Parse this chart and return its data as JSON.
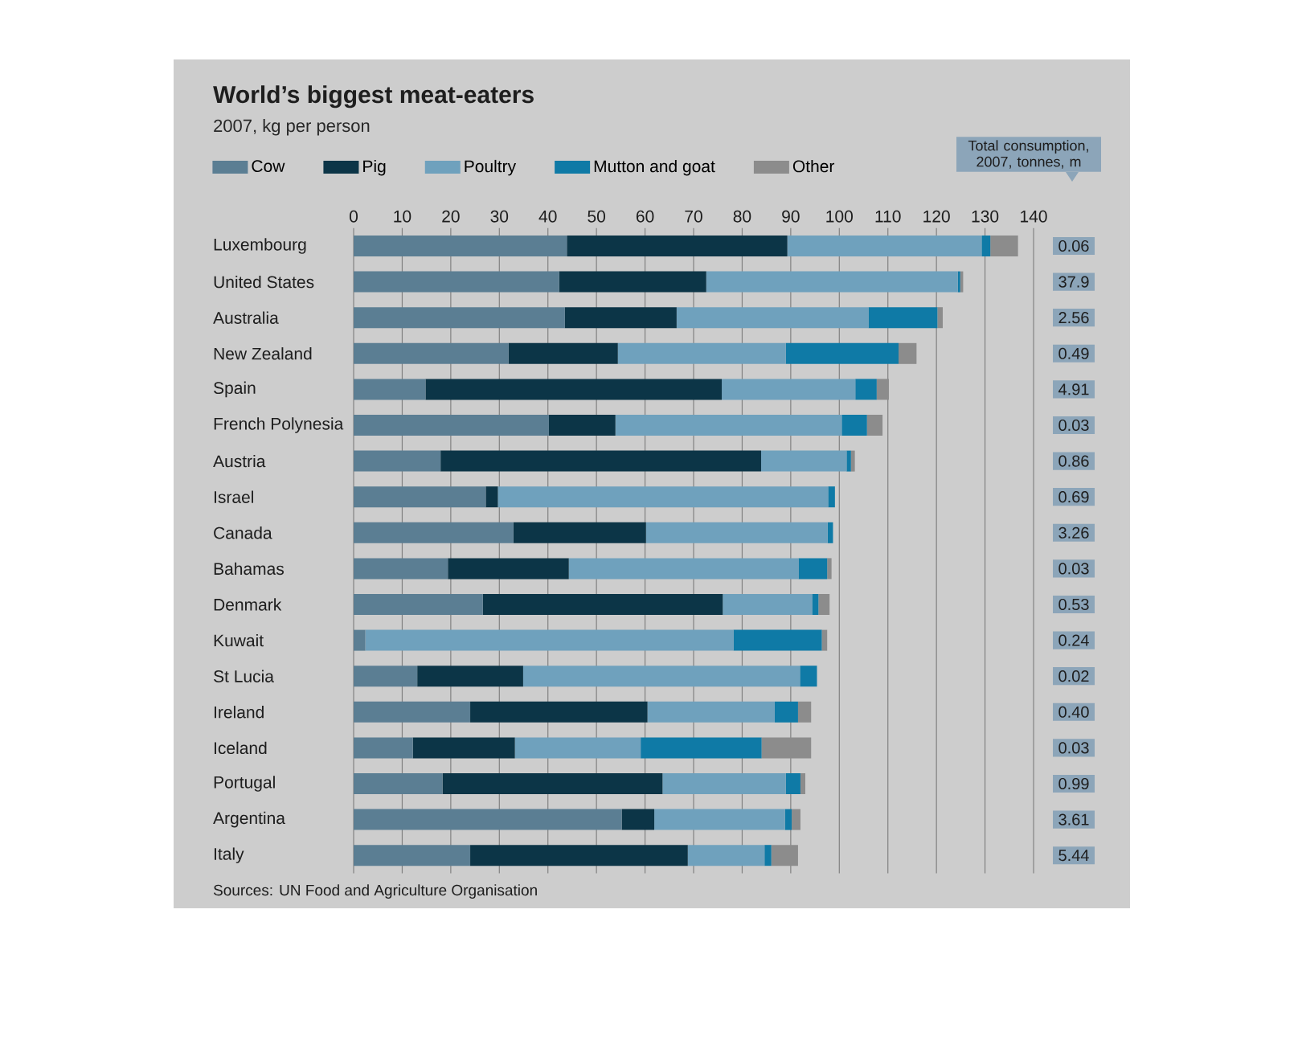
{
  "chart_data": {
    "type": "bar",
    "orientation": "horizontal",
    "stacked": true,
    "title": "World’s biggest meat-eaters",
    "subtitle": "2007, kg per person",
    "categories": [
      "Luxembourg",
      "United States",
      "Australia",
      "New Zealand",
      "Spain",
      "French Polynesia",
      "Austria",
      "Israel",
      "Canada",
      "Bahamas",
      "Denmark",
      "Kuwait",
      "St Lucia",
      "Ireland",
      "Iceland",
      "Portugal",
      "Argentina",
      "Italy"
    ],
    "series": [
      {
        "name": "Cow",
        "color": "#5b7e93",
        "values": [
          43.9,
          42.3,
          43.5,
          31.9,
          14.8,
          40.2,
          17.9,
          27.2,
          32.9,
          19.4,
          26.6,
          2.4,
          13.1,
          24.0,
          12.2,
          18.3,
          55.2,
          24.0
        ]
      },
      {
        "name": "Pig",
        "color": "#0c3547",
        "values": [
          45.4,
          30.3,
          23.0,
          22.5,
          61.0,
          13.7,
          66.0,
          2.5,
          27.3,
          24.9,
          49.4,
          0,
          21.8,
          36.5,
          21.0,
          45.3,
          6.7,
          44.8
        ]
      },
      {
        "name": "Poultry",
        "color": "#6fa1bd",
        "values": [
          40.0,
          51.8,
          39.5,
          34.6,
          27.5,
          46.6,
          17.6,
          68.0,
          37.4,
          47.3,
          18.4,
          75.8,
          57.0,
          26.2,
          25.9,
          25.4,
          26.9,
          15.8
        ]
      },
      {
        "name": "Mutton and goat",
        "color": "#0f7aa6",
        "values": [
          1.8,
          0.5,
          14.2,
          23.2,
          4.4,
          5.2,
          0.9,
          1.4,
          1.1,
          5.9,
          1.3,
          18.2,
          3.5,
          4.8,
          24.9,
          3.0,
          1.4,
          1.4
        ]
      },
      {
        "name": "Other",
        "color": "#8c8c8c",
        "values": [
          5.7,
          0.6,
          1.1,
          3.7,
          2.5,
          3.2,
          0.8,
          0,
          0,
          0.9,
          2.3,
          1.1,
          0,
          2.7,
          10.2,
          1.0,
          1.8,
          5.5
        ]
      }
    ],
    "xlim": [
      0,
      140
    ],
    "xticks": [
      0,
      10,
      20,
      30,
      40,
      50,
      60,
      70,
      80,
      90,
      100,
      110,
      120,
      130,
      140
    ],
    "grid": "x",
    "legend": "top",
    "annotations": [
      "Total consumption, 2007, tonnes, m",
      "0.06",
      "37.9",
      "2.56",
      "0.49",
      "4.91",
      "0.03",
      "0.86",
      "0.69",
      "3.26",
      "0.03",
      "0.53",
      "0.24",
      "0.02",
      "0.40",
      "0.03",
      "0.99",
      "3.61",
      "5.44",
      "Sources: UN Food and Agriculture Organisation"
    ]
  }
}
